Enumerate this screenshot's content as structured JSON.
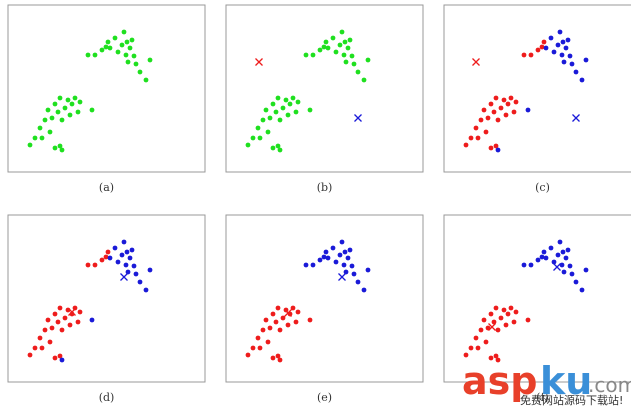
{
  "chart_data": [
    {
      "type": "scatter",
      "caption": "(a)",
      "xlim": [
        0,
        197
      ],
      "ylim": [
        0,
        167
      ],
      "series": [
        {
          "color": "#1fe01f",
          "marker": "o",
          "x": [
            80,
            87,
            94,
            98,
            100,
            102,
            107,
            110,
            114,
            116,
            118,
            120,
            122,
            124,
            126,
            128,
            132,
            138,
            142,
            119,
            22,
            32,
            37,
            40,
            42,
            44,
            47,
            50,
            52,
            54,
            57,
            60,
            62,
            64,
            67,
            70,
            72,
            84,
            47,
            52,
            54,
            34,
            27
          ],
          "y": [
            117,
            117,
            122,
            125,
            130,
            124,
            134,
            120,
            127,
            140,
            117,
            110,
            124,
            132,
            116,
            108,
            100,
            92,
            112,
            130,
            27,
            44,
            52,
            62,
            40,
            54,
            68,
            60,
            74,
            52,
            64,
            72,
            57,
            68,
            74,
            60,
            70,
            62,
            24,
            26,
            22,
            34,
            34
          ]
        }
      ]
    },
    {
      "type": "scatter",
      "caption": "(b)",
      "xlim": [
        0,
        197
      ],
      "ylim": [
        0,
        167
      ],
      "series": [
        {
          "color": "#1fe01f",
          "marker": "o",
          "x": [
            80,
            87,
            94,
            98,
            100,
            102,
            107,
            110,
            114,
            116,
            118,
            120,
            122,
            124,
            126,
            128,
            132,
            138,
            142,
            119,
            22,
            32,
            37,
            40,
            42,
            44,
            47,
            50,
            52,
            54,
            57,
            60,
            62,
            64,
            67,
            70,
            72,
            84,
            47,
            52,
            54,
            34,
            27
          ],
          "y": [
            117,
            117,
            122,
            125,
            130,
            124,
            134,
            120,
            127,
            140,
            117,
            110,
            124,
            132,
            116,
            108,
            100,
            92,
            112,
            130,
            27,
            44,
            52,
            62,
            40,
            54,
            68,
            60,
            74,
            52,
            64,
            72,
            57,
            68,
            74,
            60,
            70,
            62,
            24,
            26,
            22,
            34,
            34
          ]
        },
        {
          "color": "#ee1c1c",
          "marker": "x",
          "x": [
            33
          ],
          "y": [
            110
          ]
        },
        {
          "color": "#1a1ad8",
          "marker": "x",
          "x": [
            132
          ],
          "y": [
            54
          ]
        }
      ]
    },
    {
      "type": "scatter",
      "caption": "(c)",
      "xlim": [
        0,
        197
      ],
      "ylim": [
        0,
        167
      ],
      "series": [
        {
          "color": "#ee1c1c",
          "marker": "o",
          "x": [
            80,
            87,
            94,
            98,
            100,
            22,
            32,
            37,
            40,
            42,
            44,
            47,
            50,
            52,
            54,
            57,
            60,
            62,
            64,
            67,
            70,
            72,
            47,
            52,
            34,
            27
          ],
          "y": [
            117,
            117,
            122,
            125,
            130,
            27,
            44,
            52,
            62,
            40,
            54,
            68,
            60,
            74,
            52,
            64,
            72,
            57,
            68,
            74,
            60,
            70,
            24,
            26,
            34,
            34
          ]
        },
        {
          "color": "#1a1ad8",
          "marker": "o",
          "x": [
            102,
            107,
            110,
            114,
            116,
            118,
            120,
            122,
            124,
            126,
            128,
            132,
            138,
            142,
            119,
            84,
            54
          ],
          "y": [
            124,
            134,
            120,
            127,
            140,
            117,
            110,
            124,
            132,
            116,
            108,
            100,
            92,
            112,
            130,
            62,
            22
          ]
        },
        {
          "color": "#ee1c1c",
          "marker": "x",
          "x": [
            32
          ],
          "y": [
            110
          ]
        },
        {
          "color": "#1a1ad8",
          "marker": "x",
          "x": [
            132
          ],
          "y": [
            54
          ]
        }
      ]
    },
    {
      "type": "scatter",
      "caption": "(d)",
      "xlim": [
        0,
        197
      ],
      "ylim": [
        0,
        167
      ],
      "series": [
        {
          "color": "#ee1c1c",
          "marker": "o",
          "x": [
            80,
            87,
            94,
            98,
            100,
            22,
            32,
            37,
            40,
            42,
            44,
            47,
            50,
            52,
            54,
            57,
            60,
            62,
            64,
            67,
            70,
            72,
            47,
            52,
            34,
            27
          ],
          "y": [
            117,
            117,
            122,
            125,
            130,
            27,
            44,
            52,
            62,
            40,
            54,
            68,
            60,
            74,
            52,
            64,
            72,
            57,
            68,
            74,
            60,
            70,
            24,
            26,
            34,
            34
          ]
        },
        {
          "color": "#1a1ad8",
          "marker": "o",
          "x": [
            102,
            107,
            110,
            114,
            116,
            118,
            120,
            122,
            124,
            126,
            128,
            132,
            138,
            142,
            119,
            84,
            54
          ],
          "y": [
            124,
            134,
            120,
            127,
            140,
            117,
            110,
            124,
            132,
            116,
            108,
            100,
            92,
            112,
            130,
            62,
            22
          ]
        },
        {
          "color": "#ee1c1c",
          "marker": "x",
          "x": [
            64
          ],
          "y": [
            70
          ]
        },
        {
          "color": "#1a1ad8",
          "marker": "x",
          "x": [
            116
          ],
          "y": [
            105
          ]
        }
      ]
    },
    {
      "type": "scatter",
      "caption": "(e)",
      "xlim": [
        0,
        197
      ],
      "ylim": [
        0,
        167
      ],
      "series": [
        {
          "color": "#ee1c1c",
          "marker": "o",
          "x": [
            22,
            32,
            37,
            40,
            42,
            44,
            47,
            50,
            52,
            54,
            57,
            60,
            62,
            64,
            67,
            70,
            72,
            84,
            47,
            52,
            54,
            34,
            27
          ],
          "y": [
            27,
            44,
            52,
            62,
            40,
            54,
            68,
            60,
            74,
            52,
            64,
            72,
            57,
            68,
            74,
            60,
            70,
            62,
            24,
            26,
            22,
            34,
            34
          ]
        },
        {
          "color": "#1a1ad8",
          "marker": "o",
          "x": [
            80,
            87,
            94,
            98,
            100,
            102,
            107,
            110,
            114,
            116,
            118,
            120,
            122,
            124,
            126,
            128,
            132,
            138,
            142,
            119
          ],
          "y": [
            117,
            117,
            122,
            125,
            130,
            124,
            134,
            120,
            127,
            140,
            117,
            110,
            124,
            132,
            116,
            108,
            100,
            92,
            112,
            130
          ]
        },
        {
          "color": "#ee1c1c",
          "marker": "x",
          "x": [
            62
          ],
          "y": [
            69
          ]
        },
        {
          "color": "#1a1ad8",
          "marker": "x",
          "x": [
            116
          ],
          "y": [
            105
          ]
        }
      ]
    },
    {
      "type": "scatter",
      "caption": "(f)",
      "xlim": [
        0,
        197
      ],
      "ylim": [
        0,
        167
      ],
      "series": [
        {
          "color": "#ee1c1c",
          "marker": "o",
          "x": [
            22,
            32,
            37,
            40,
            42,
            44,
            47,
            50,
            52,
            54,
            57,
            60,
            62,
            64,
            67,
            70,
            72,
            84,
            47,
            52,
            54,
            34,
            27
          ],
          "y": [
            27,
            44,
            52,
            62,
            40,
            54,
            68,
            60,
            74,
            52,
            64,
            72,
            57,
            68,
            74,
            60,
            70,
            62,
            24,
            26,
            22,
            34,
            34
          ]
        },
        {
          "color": "#1a1ad8",
          "marker": "o",
          "x": [
            80,
            87,
            94,
            98,
            100,
            102,
            107,
            110,
            114,
            116,
            118,
            120,
            122,
            124,
            126,
            128,
            132,
            138,
            142,
            119
          ],
          "y": [
            117,
            117,
            122,
            125,
            130,
            124,
            134,
            120,
            127,
            140,
            117,
            110,
            124,
            132,
            116,
            108,
            100,
            92,
            112,
            130
          ]
        },
        {
          "color": "#ee1c1c",
          "marker": "x",
          "x": [
            48
          ],
          "y": [
            55
          ]
        },
        {
          "color": "#1a1ad8",
          "marker": "x",
          "x": [
            113
          ],
          "y": [
            115
          ]
        }
      ]
    }
  ],
  "watermark": {
    "part1": "asp",
    "part2": "ku",
    "part3": ".com",
    "tagline": "免费网站源码下载站!"
  }
}
